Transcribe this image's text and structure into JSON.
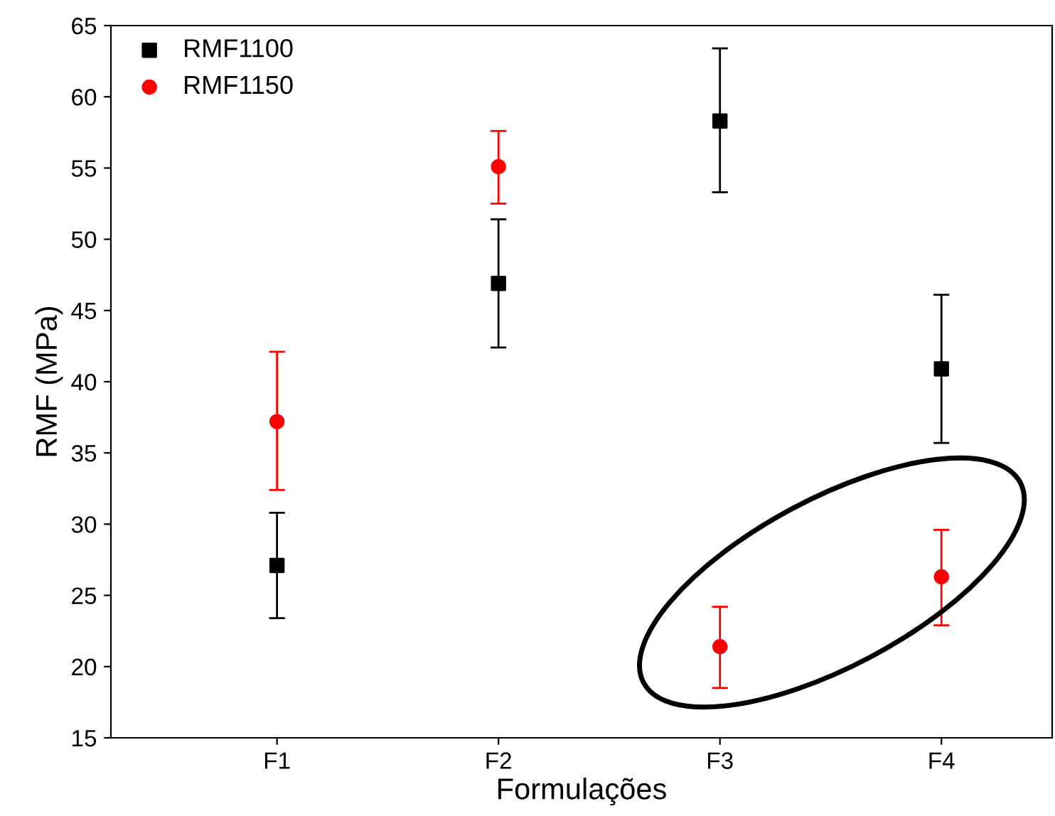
{
  "chart_data": {
    "type": "scatter",
    "xlabel": "Formulações",
    "ylabel": "RMF (MPa)",
    "categories": [
      "F1",
      "F2",
      "F3",
      "F4"
    ],
    "series": [
      {
        "name": "RMF1100",
        "color": "#000000",
        "marker": "square",
        "values": [
          27.1,
          46.9,
          58.3,
          40.9
        ],
        "errors": [
          [
            23.4,
            30.8
          ],
          [
            42.4,
            51.4
          ],
          [
            53.3,
            63.4
          ],
          [
            35.7,
            46.1
          ]
        ]
      },
      {
        "name": "RMF1150",
        "color": "#ff0000",
        "marker": "circle",
        "values": [
          37.2,
          55.1,
          21.4,
          26.3
        ],
        "errors": [
          [
            32.4,
            42.1
          ],
          [
            52.5,
            57.6
          ],
          [
            18.5,
            24.2
          ],
          [
            22.9,
            29.6
          ]
        ]
      }
    ],
    "ylim": [
      15,
      65
    ],
    "yticks": [
      15,
      20,
      25,
      30,
      35,
      40,
      45,
      50,
      55,
      60,
      65
    ],
    "grid": false,
    "legend": "top left"
  }
}
